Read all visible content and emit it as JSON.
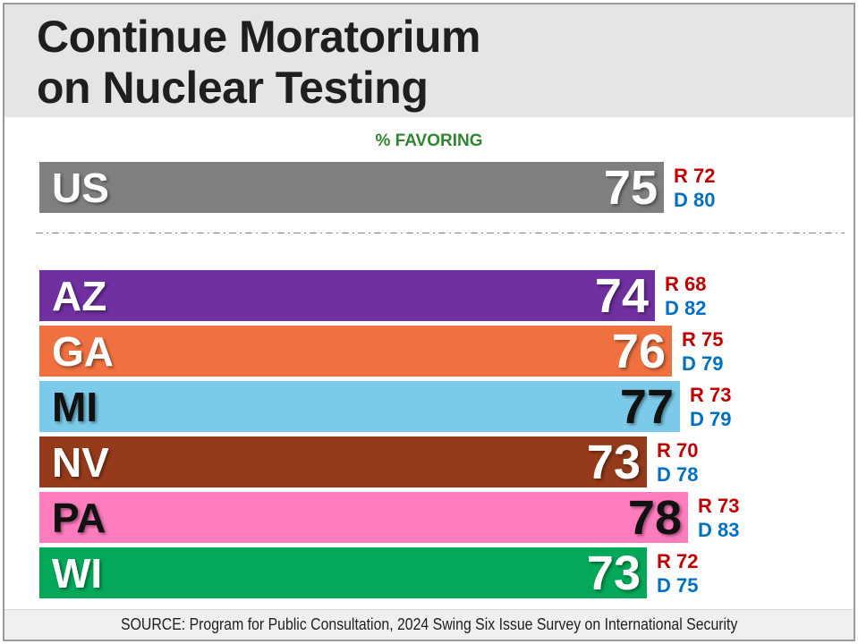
{
  "header": {
    "title_line1": "Continue Moratorium",
    "title_line2": "on Nuclear Testing"
  },
  "chart_label": "% FAVORING",
  "chart_data": {
    "type": "bar",
    "orientation": "horizontal",
    "unit": "percent favoring",
    "xlim": [
      0,
      96.5
    ],
    "rep_prefix": "R",
    "dem_prefix": "D",
    "rep_color": "#C00000",
    "dem_color": "#0070C0",
    "rows": [
      {
        "label": "US",
        "value": 75,
        "rep": 72,
        "dem": 80,
        "color": "#7F7F7F",
        "text_color": "#FFFFFF",
        "group": "national"
      },
      {
        "label": "AZ",
        "value": 74,
        "rep": 68,
        "dem": 82,
        "color": "#7030A0",
        "text_color": "#FFFFFF",
        "group": "state"
      },
      {
        "label": "GA",
        "value": 76,
        "rep": 75,
        "dem": 79,
        "color": "#EF7140",
        "text_color": "#FFFFFF",
        "group": "state"
      },
      {
        "label": "MI",
        "value": 77,
        "rep": 73,
        "dem": 79,
        "color": "#7BCAE9",
        "text_color": "#111111",
        "group": "state"
      },
      {
        "label": "NV",
        "value": 73,
        "rep": 70,
        "dem": 78,
        "color": "#953A1B",
        "text_color": "#FFFFFF",
        "group": "state"
      },
      {
        "label": "PA",
        "value": 78,
        "rep": 73,
        "dem": 83,
        "color": "#FF7CBF",
        "text_color": "#111111",
        "group": "state"
      },
      {
        "label": "WI",
        "value": 73,
        "rep": 72,
        "dem": 75,
        "color": "#03A858",
        "text_color": "#FFFFFF",
        "group": "state"
      }
    ]
  },
  "footer": {
    "source": "SOURCE: Program for Public Consultation, 2024 Swing Six Issue Survey on International Security"
  }
}
